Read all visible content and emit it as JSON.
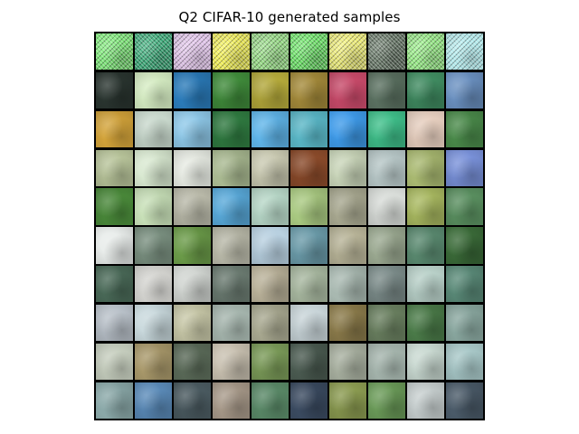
{
  "figure": {
    "title": "Q2 CIFAR-10 generated samples"
  },
  "grid": {
    "rows": 10,
    "cols": 10,
    "tiles": [
      [
        "#7fe87a",
        "#3fae7c",
        "#e6c9ef",
        "#f4f25a",
        "#9be08a",
        "#6fe36a",
        "#f1f07a",
        "#6a7a6a",
        "#9bf08a",
        "#b9f2f4"
      ],
      [
        "#2a3530",
        "#d7eec4",
        "#2a7ab8",
        "#3f8a3a",
        "#b3a83a",
        "#a48a3a",
        "#c94a6a",
        "#5a7060",
        "#3f8a60",
        "#6a90c0"
      ],
      [
        "#d4a43a",
        "#c8d8cc",
        "#8ec8e8",
        "#2f7a40",
        "#5fb4e8",
        "#5ab8c8",
        "#3e9ae8",
        "#3fbf8a",
        "#e8d0c0",
        "#4a8a4a"
      ],
      [
        "#b8c49a",
        "#d8e8d0",
        "#e8ece4",
        "#a8b890",
        "#c8c8b0",
        "#8a4a2a",
        "#c8d4b8",
        "#b8c8c8",
        "#a8b870",
        "#7890d8"
      ],
      [
        "#4a8a3a",
        "#c8e0b8",
        "#b8b8a8",
        "#58a8d8",
        "#b8d8c8",
        "#a8c880",
        "#a8a890",
        "#d8dcd8",
        "#a8b860",
        "#5a9060"
      ],
      [
        "#e8ecea",
        "#7a9080",
        "#6a9a48",
        "#b8b8a8",
        "#b8d0e0",
        "#6a9aa8",
        "#b8b498",
        "#9aa890",
        "#5a8a70",
        "#3a6a38"
      ],
      [
        "#4a6a58",
        "#d8d8d4",
        "#d0d4d0",
        "#6a7a70",
        "#b8b098",
        "#a8b8a0",
        "#a8b8b0",
        "#7a8a88",
        "#b8d0c8",
        "#5a8a78"
      ],
      [
        "#b8c0c8",
        "#c8d8dc",
        "#c8c8a8",
        "#a8b8b0",
        "#a8a890",
        "#c8d4d8",
        "#8a7a4a",
        "#6a8060",
        "#4a7a48",
        "#8aa8a0"
      ],
      [
        "#c8d0c0",
        "#a8986a",
        "#5a6a58",
        "#c8c0b0",
        "#7a9a58",
        "#4a5a50",
        "#a8b0a0",
        "#a8b8b0",
        "#c8d8d0",
        "#a8c8c8"
      ],
      [
        "#8aa8a8",
        "#5a8ab8",
        "#4a5a60",
        "#a89a8a",
        "#5a8a68",
        "#3a4a60",
        "#8a9a50",
        "#6a9a58",
        "#c8d0d0",
        "#4a5a68"
      ]
    ]
  }
}
